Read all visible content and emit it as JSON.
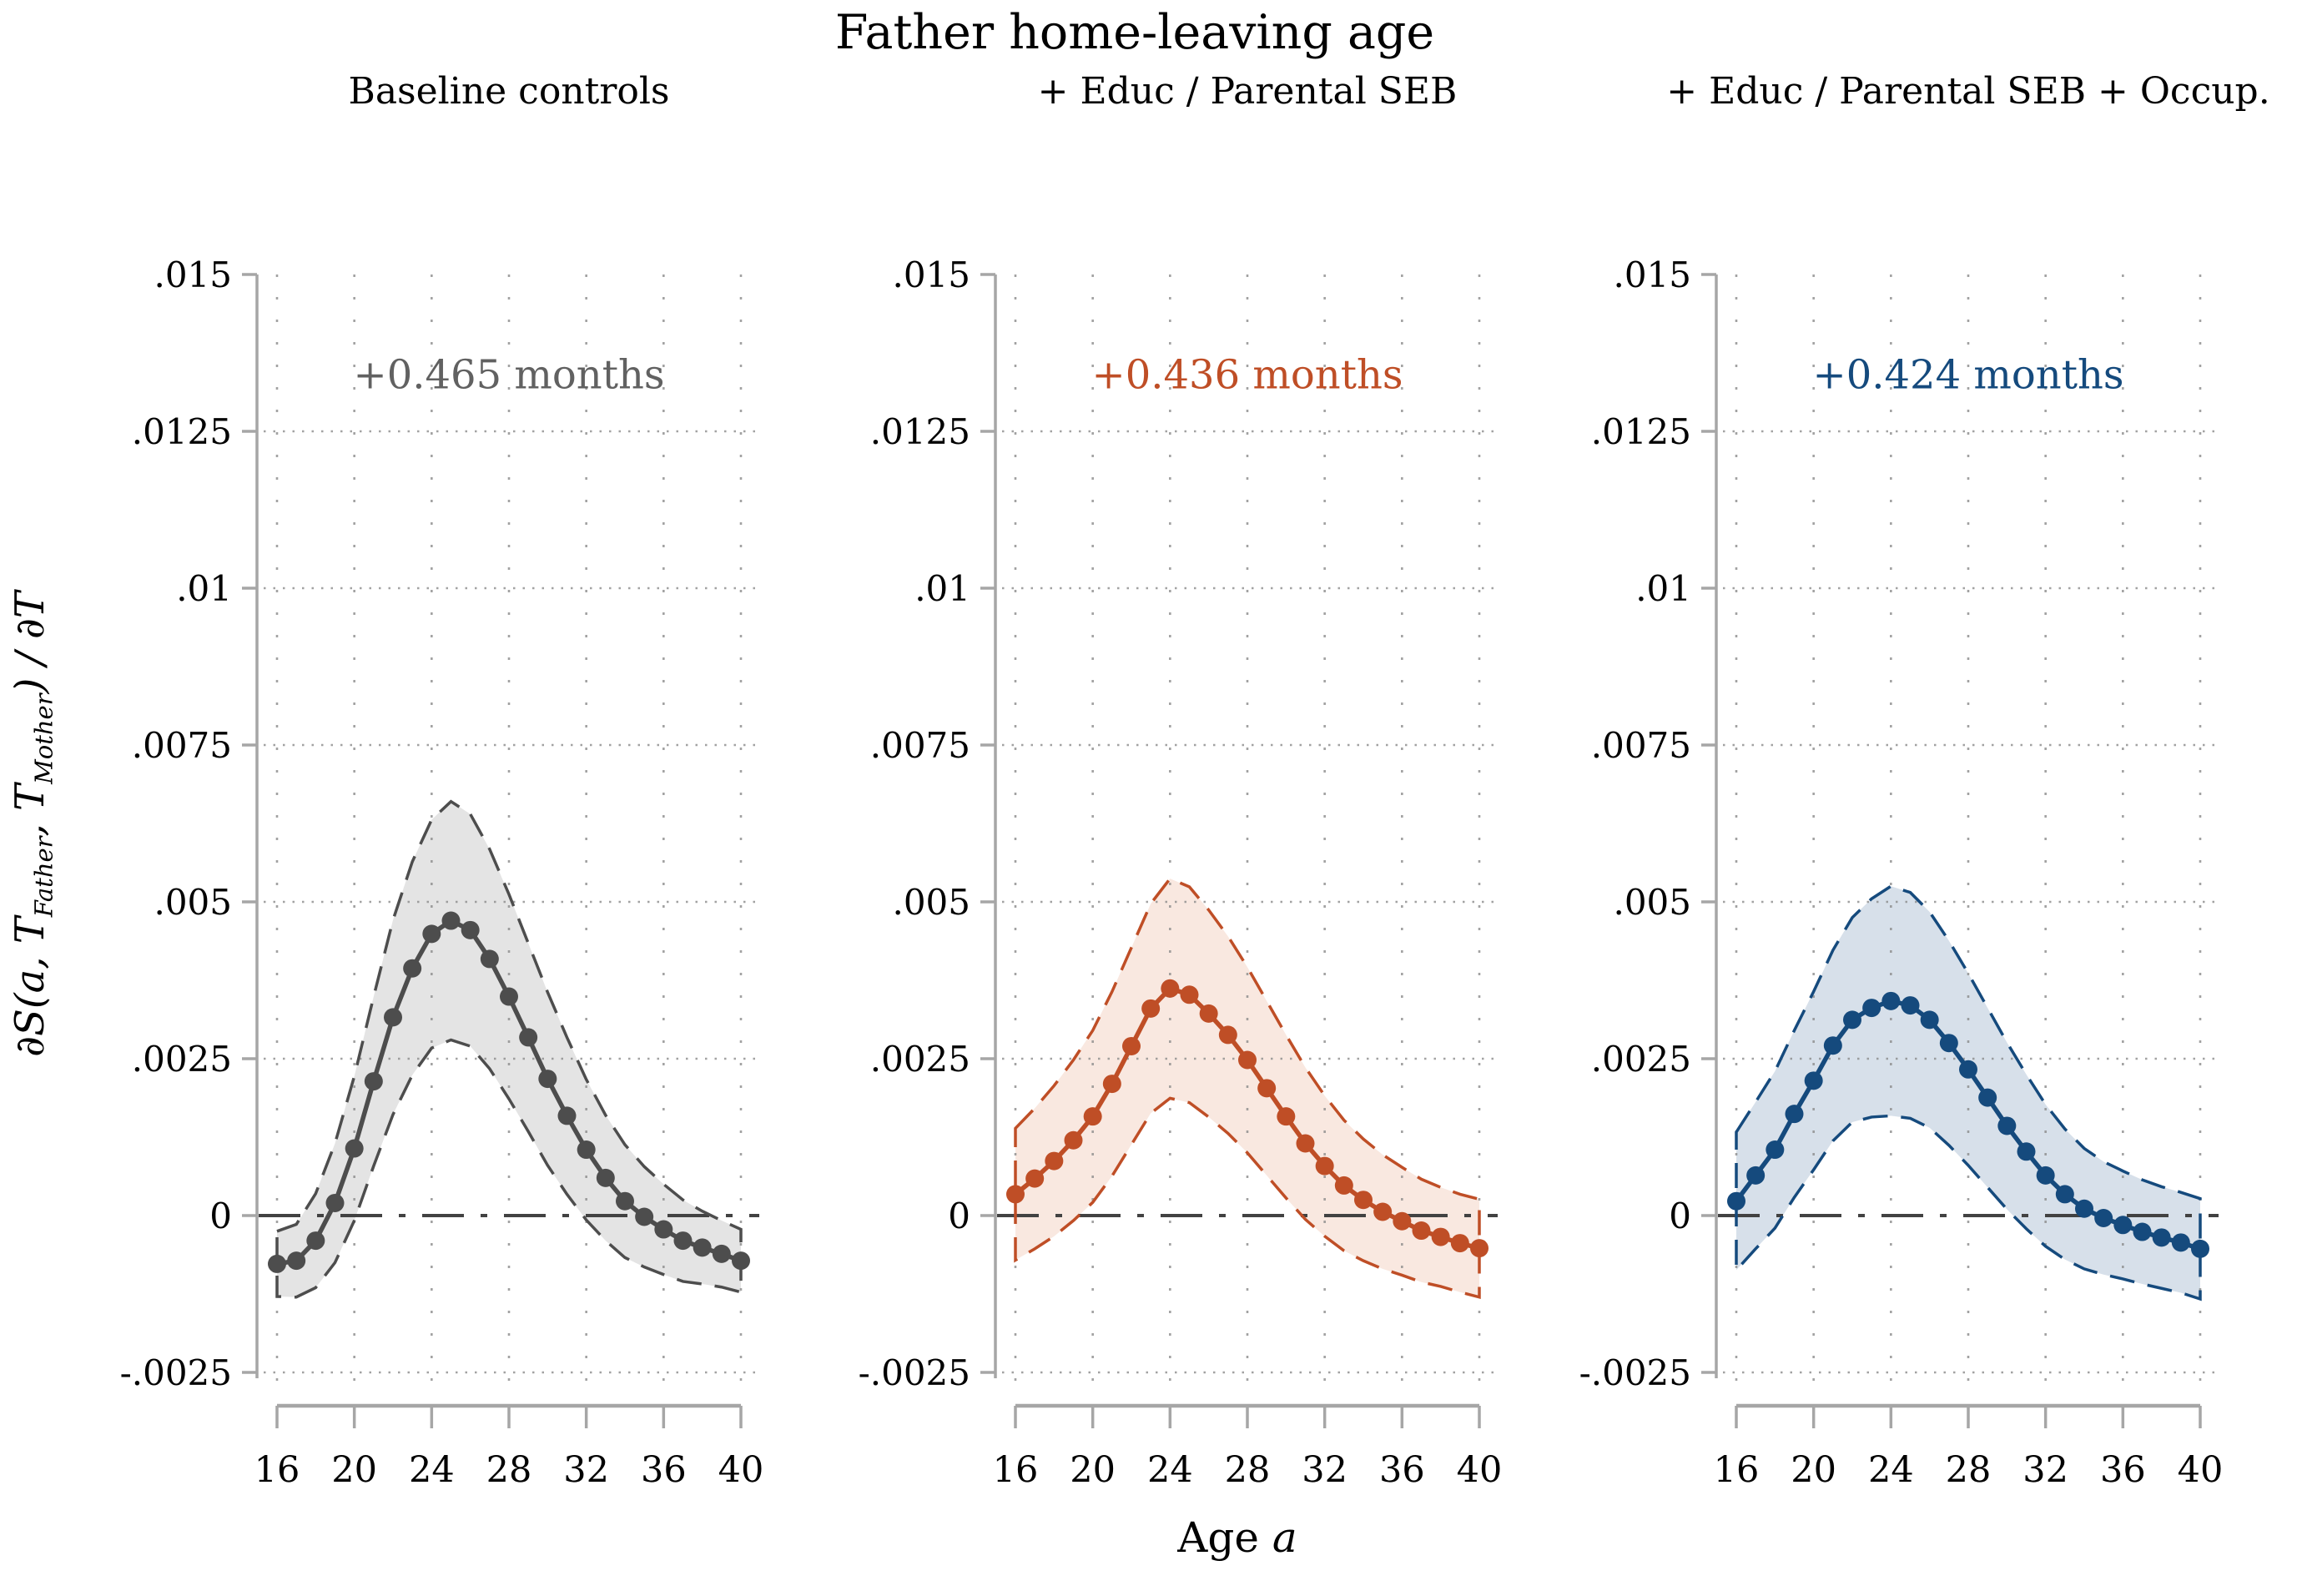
{
  "chart_data": {
    "type": "line",
    "title": "Father home-leaving age",
    "xlabel": {
      "prefix": "Age ",
      "variable": "a"
    },
    "ylabel_parts": [
      {
        "t": "∂S(a, T"
      },
      {
        "s": "Father"
      },
      {
        "t": ", T"
      },
      {
        "s": "Mother"
      },
      {
        "t": ") / ∂T"
      }
    ],
    "x": [
      16,
      17,
      18,
      19,
      20,
      21,
      22,
      23,
      24,
      25,
      26,
      27,
      28,
      29,
      30,
      31,
      32,
      33,
      34,
      35,
      36,
      37,
      38,
      39,
      40
    ],
    "xticks": [
      16,
      20,
      24,
      28,
      32,
      36,
      40
    ],
    "yticks": [
      {
        "label": ".015",
        "value": 0.015,
        "grid": false
      },
      {
        "label": ".0125",
        "value": 0.0125,
        "grid": true
      },
      {
        "label": ".01",
        "value": 0.01,
        "grid": true
      },
      {
        "label": ".0075",
        "value": 0.0075,
        "grid": true
      },
      {
        "label": ".005",
        "value": 0.005,
        "grid": true
      },
      {
        "label": ".0025",
        "value": 0.0025,
        "grid": true
      },
      {
        "label": "0",
        "value": 0,
        "grid": false
      },
      {
        "label": "-.0025",
        "value": -0.0025,
        "grid": true
      }
    ],
    "ylim": [
      -0.0025,
      0.015
    ],
    "xlim": [
      16,
      40
    ],
    "zero_line": true,
    "grid": true,
    "colors": {
      "axis": "#a6a6a6",
      "grid_dots": "#8c8c8c",
      "zero_line": "#424242",
      "tick_text": "#000000"
    },
    "panels": [
      {
        "title": "Baseline controls",
        "annotation": "+0.465 months",
        "annotation_color": "#616161",
        "color": "#4d4d4d",
        "fill": "#e4e4e4",
        "values": [
          -0.00077,
          -0.00072,
          -0.0004,
          0.0002,
          0.00107,
          0.00214,
          0.00316,
          0.00394,
          0.00449,
          0.0047,
          0.00455,
          0.00409,
          0.00349,
          0.00284,
          0.00218,
          0.00159,
          0.00105,
          0.0006,
          0.00023,
          -2e-05,
          -0.00022,
          -0.0004,
          -0.00051,
          -0.00061,
          -0.00072
        ],
        "upper": [
          -0.00025,
          -0.00014,
          0.00035,
          0.00115,
          0.00222,
          0.00349,
          0.00471,
          0.00564,
          0.00631,
          0.0066,
          0.0064,
          0.00584,
          0.00512,
          0.00434,
          0.00356,
          0.00284,
          0.00217,
          0.0016,
          0.00113,
          0.00078,
          0.0005,
          0.00025,
          7e-05,
          -8e-05,
          -0.00022
        ],
        "lower": [
          -0.00129,
          -0.0013,
          -0.00115,
          -0.00075,
          -8e-05,
          0.00079,
          0.00161,
          0.00224,
          0.00267,
          0.0028,
          0.0027,
          0.00234,
          0.00186,
          0.00134,
          0.0008,
          0.00034,
          -7e-05,
          -0.0004,
          -0.00067,
          -0.00082,
          -0.00094,
          -0.00105,
          -0.00109,
          -0.00114,
          -0.00122
        ]
      },
      {
        "title": "+ Educ / Parental SEB",
        "annotation": "+0.436 months",
        "annotation_color": "#bf4e26",
        "color": "#bf4e26",
        "fill": "#f9e8e0",
        "values": [
          0.00034,
          0.00059,
          0.00087,
          0.0012,
          0.00158,
          0.0021,
          0.0027,
          0.0033,
          0.00362,
          0.00352,
          0.00322,
          0.00288,
          0.00248,
          0.00203,
          0.00158,
          0.00115,
          0.00079,
          0.00048,
          0.00025,
          6e-05,
          -9e-05,
          -0.00024,
          -0.00034,
          -0.00044,
          -0.00052
        ],
        "upper": [
          0.00139,
          0.00171,
          0.00207,
          0.00248,
          0.00295,
          0.00357,
          0.00427,
          0.00497,
          0.00537,
          0.00524,
          0.00487,
          0.00445,
          0.00396,
          0.00342,
          0.00288,
          0.00236,
          0.00191,
          0.00152,
          0.00122,
          0.00097,
          0.00077,
          0.00058,
          0.00045,
          0.00034,
          0.00026
        ],
        "lower": [
          -0.00071,
          -0.00053,
          -0.00033,
          -8e-05,
          0.00021,
          0.00063,
          0.00113,
          0.00163,
          0.00187,
          0.0018,
          0.00157,
          0.00131,
          0.001,
          0.00064,
          0.00028,
          -6e-05,
          -0.00033,
          -0.00056,
          -0.00072,
          -0.00085,
          -0.00095,
          -0.00106,
          -0.00113,
          -0.00122,
          -0.0013
        ]
      },
      {
        "title": "+ Educ / Parental SEB + Occup.",
        "annotation": "+0.424 months",
        "annotation_color": "#154a7d",
        "color": "#154a7d",
        "fill": "#d7e0ea",
        "values": [
          0.00023,
          0.00064,
          0.00105,
          0.00162,
          0.00215,
          0.00271,
          0.00312,
          0.00331,
          0.00342,
          0.00335,
          0.00312,
          0.00275,
          0.00233,
          0.00188,
          0.00143,
          0.00102,
          0.00064,
          0.00034,
          0.00011,
          -4e-05,
          -0.00015,
          -0.00026,
          -0.00035,
          -0.00043,
          -0.00053
        ],
        "upper": [
          0.00133,
          0.00181,
          0.0023,
          0.00295,
          0.00357,
          0.00423,
          0.00475,
          0.00505,
          0.00525,
          0.00515,
          0.00484,
          0.00438,
          0.00386,
          0.00331,
          0.00276,
          0.00225,
          0.00177,
          0.00138,
          0.00107,
          0.00086,
          0.00071,
          0.00057,
          0.00046,
          0.00037,
          0.00027
        ],
        "lower": [
          -0.00087,
          -0.00053,
          -0.0002,
          0.00029,
          0.00073,
          0.00119,
          0.00149,
          0.00157,
          0.00159,
          0.00155,
          0.0014,
          0.00112,
          0.0008,
          0.00045,
          0.0001,
          -0.00021,
          -0.00049,
          -0.0007,
          -0.00085,
          -0.00094,
          -0.00101,
          -0.00109,
          -0.00116,
          -0.00123,
          -0.00133
        ]
      }
    ]
  }
}
